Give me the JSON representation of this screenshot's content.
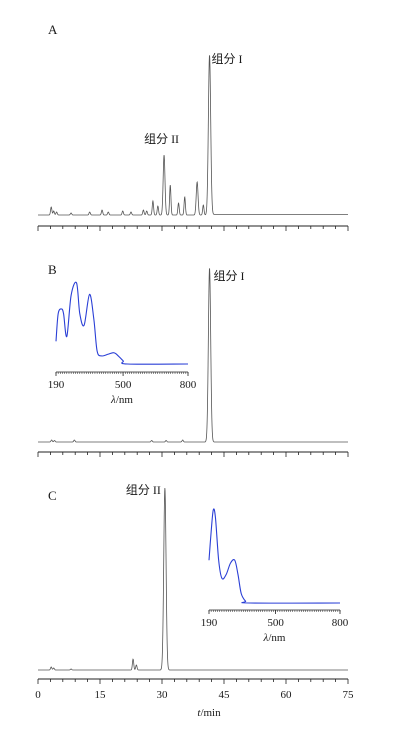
{
  "chart_data": [
    {
      "type": "line",
      "panel_label": "A",
      "xlim": [
        0,
        75
      ],
      "peaks": [
        {
          "t": 3.2,
          "h": 8
        },
        {
          "t": 3.8,
          "h": 4
        },
        {
          "t": 4.5,
          "h": 3
        },
        {
          "t": 8.0,
          "h": 2
        },
        {
          "t": 12.5,
          "h": 3
        },
        {
          "t": 15.5,
          "h": 5
        },
        {
          "t": 17.0,
          "h": 3
        },
        {
          "t": 20.5,
          "h": 4
        },
        {
          "t": 22.5,
          "h": 3
        },
        {
          "t": 25.5,
          "h": 5
        },
        {
          "t": 26.3,
          "h": 4
        },
        {
          "t": 27.8,
          "h": 14
        },
        {
          "t": 29.0,
          "h": 9
        },
        {
          "t": 30.5,
          "h": 60,
          "label": "组分 II"
        },
        {
          "t": 32.0,
          "h": 30
        },
        {
          "t": 34.0,
          "h": 12
        },
        {
          "t": 35.5,
          "h": 18
        },
        {
          "t": 38.5,
          "h": 33
        },
        {
          "t": 40.0,
          "h": 10
        },
        {
          "t": 41.5,
          "h": 160,
          "label": "组分 I"
        }
      ],
      "annotations": [
        {
          "text": "组分 I",
          "t": 41.5
        },
        {
          "text": "组分 II",
          "t": 30.5
        }
      ]
    },
    {
      "type": "line",
      "panel_label": "B",
      "xlim": [
        0,
        75
      ],
      "peaks": [
        {
          "t": 3.3,
          "h": 2
        },
        {
          "t": 4.0,
          "h": 1.5
        },
        {
          "t": 8.8,
          "h": 2
        },
        {
          "t": 27.5,
          "h": 1.5
        },
        {
          "t": 31.0,
          "h": 1.5
        },
        {
          "t": 35.0,
          "h": 2
        },
        {
          "t": 41.5,
          "h": 174,
          "label": "组分 I"
        }
      ],
      "annotations": [
        {
          "text": "组分 I",
          "t": 41.5
        }
      ],
      "inset": {
        "type": "line",
        "xlabel": "λ/nm",
        "x_ticks": [
          "190",
          "500",
          "800"
        ],
        "xlim": [
          190,
          800
        ],
        "color": "#2a3fd6",
        "points": [
          [
            190,
            0.28
          ],
          [
            200,
            0.62
          ],
          [
            215,
            0.68
          ],
          [
            225,
            0.62
          ],
          [
            240,
            0.34
          ],
          [
            260,
            0.85
          ],
          [
            285,
            1.0
          ],
          [
            300,
            0.62
          ],
          [
            320,
            0.48
          ],
          [
            345,
            0.86
          ],
          [
            365,
            0.55
          ],
          [
            380,
            0.16
          ],
          [
            400,
            0.1
          ],
          [
            430,
            0.12
          ],
          [
            455,
            0.14
          ],
          [
            470,
            0.12
          ],
          [
            500,
            0.04
          ],
          [
            520,
            0.0
          ],
          [
            800,
            0.0
          ]
        ]
      }
    },
    {
      "type": "line",
      "panel_label": "C",
      "xlim": [
        0,
        75
      ],
      "x_ticks": [
        "0",
        "15",
        "30",
        "45",
        "60",
        "75"
      ],
      "xlabel": "t/min",
      "peaks": [
        {
          "t": 3.2,
          "h": 3
        },
        {
          "t": 3.8,
          "h": 2
        },
        {
          "t": 8.0,
          "h": 1
        },
        {
          "t": 23.0,
          "h": 11
        },
        {
          "t": 23.8,
          "h": 5
        },
        {
          "t": 30.7,
          "h": 182,
          "label": "组分 II"
        }
      ],
      "annotations": [
        {
          "text": "组分 II",
          "t": 30.7
        }
      ],
      "inset": {
        "type": "line",
        "xlabel": "λ/nm",
        "x_ticks": [
          "190",
          "500",
          "800"
        ],
        "xlim": [
          190,
          800
        ],
        "color": "#2a3fd6",
        "points": [
          [
            190,
            0.45
          ],
          [
            200,
            0.75
          ],
          [
            210,
            0.98
          ],
          [
            220,
            0.9
          ],
          [
            235,
            0.45
          ],
          [
            250,
            0.26
          ],
          [
            270,
            0.3
          ],
          [
            290,
            0.42
          ],
          [
            310,
            0.45
          ],
          [
            325,
            0.3
          ],
          [
            340,
            0.1
          ],
          [
            360,
            0.02
          ],
          [
            380,
            0.0
          ],
          [
            800,
            0.0
          ]
        ]
      }
    }
  ]
}
